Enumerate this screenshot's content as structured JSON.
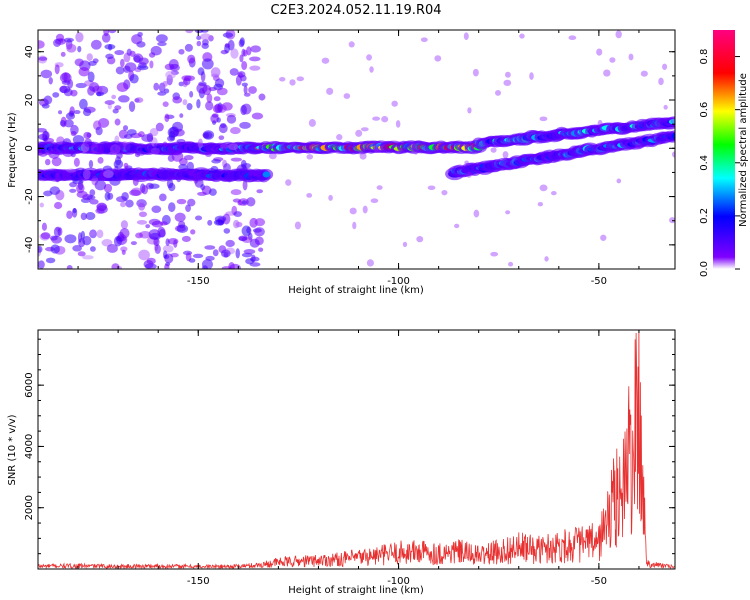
{
  "title": "C2E3.2024.052.11.19.R04",
  "chart_data": [
    {
      "type": "heatmap",
      "xlabel": "Height of straight line (km)",
      "ylabel": "Frequency (Hz)",
      "xlim": [
        -190,
        -31
      ],
      "ylim": [
        -50,
        49
      ],
      "xticks": [
        -150,
        -100,
        -50
      ],
      "yticks": [
        -40,
        -20,
        0,
        20,
        40
      ],
      "colorbar": {
        "label": "Normalized spectral amplitude",
        "range": [
          0,
          0.9
        ],
        "ticks": [
          0.0,
          0.2,
          0.4,
          0.6,
          0.8
        ],
        "colors": [
          "#ffffff",
          "#7f00ff",
          "#0000ff",
          "#00ffff",
          "#00ff00",
          "#ffff00",
          "#ff0000",
          "#ff0080"
        ]
      },
      "features": [
        {
          "x": [
            -190,
            -135
          ],
          "y": [
            0,
            0
          ],
          "amplitude": 0.3
        },
        {
          "x": [
            -135,
            -80
          ],
          "y": [
            0,
            0.5
          ],
          "amplitude": 0.7
        },
        {
          "x": [
            -80,
            -31
          ],
          "y": [
            2,
            11
          ],
          "amplitude": 0.35
        },
        {
          "x": [
            -190,
            -133
          ],
          "y": [
            -11,
            -11
          ],
          "amplitude": 0.25
        },
        {
          "x": [
            -86,
            -31
          ],
          "y": [
            -10,
            5
          ],
          "amplitude": 0.3
        },
        {
          "x": [
            -190,
            -134
          ],
          "y": [
            -50,
            49
          ],
          "amplitude": 0.08,
          "kind": "noise"
        }
      ]
    },
    {
      "type": "line",
      "xlabel": "Height of straight line (km)",
      "ylabel": "SNR (10 * v/v)",
      "xlim": [
        -190,
        -31
      ],
      "ylim": [
        0,
        7800
      ],
      "xticks": [
        -150,
        -100,
        -50
      ],
      "yticks": [
        2000,
        4000,
        6000
      ],
      "color": "#e83030",
      "series": [
        {
          "x": [
            -190,
            -180,
            -170,
            -160,
            -150,
            -140,
            -135,
            -130,
            -125,
            -120,
            -115,
            -110,
            -105,
            -100,
            -95,
            -90,
            -85,
            -80,
            -75,
            -70,
            -65,
            -60,
            -55,
            -50,
            -48,
            -46,
            -44,
            -42,
            -40,
            -38,
            -35,
            -31
          ],
          "y": [
            150,
            160,
            140,
            150,
            130,
            140,
            200,
            350,
            400,
            450,
            500,
            600,
            700,
            850,
            900,
            800,
            900,
            700,
            900,
            1100,
            1000,
            1200,
            1300,
            1400,
            2500,
            3500,
            4500,
            6000,
            7800,
            300,
            200,
            100
          ]
        }
      ]
    }
  ]
}
